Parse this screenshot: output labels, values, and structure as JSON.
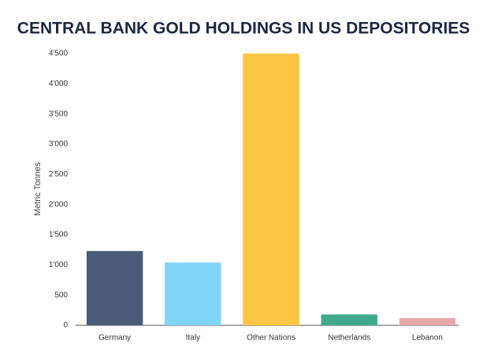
{
  "chart_data": {
    "type": "bar",
    "title": "CENTRAL BANK GOLD HOLDINGS IN US DEPOSITORIES",
    "y_label": "Metric Tonnes",
    "categories": [
      "Germany",
      "Italy",
      "Other Nations",
      "Netherlands",
      "Lebanon"
    ],
    "values": [
      1230,
      1040,
      4500,
      180,
      120
    ],
    "colors": [
      "#4a5a78",
      "#80d4f8",
      "#fdc542",
      "#3ea98b",
      "#e9a9ab"
    ],
    "ylim": [
      0,
      4500
    ],
    "yticks": [
      0,
      500,
      {
        "value": 1000,
        "label": "1'000"
      },
      {
        "value": 1500,
        "label": "1'500"
      },
      {
        "value": 2000,
        "label": "2'000"
      },
      {
        "value": 2500,
        "label": "2'500"
      },
      {
        "value": 3000,
        "label": "3'000"
      },
      {
        "value": 3500,
        "label": "3'500"
      },
      {
        "value": 4000,
        "label": "4'000"
      },
      {
        "value": 4500,
        "label": "4'500"
      }
    ],
    "grid": false
  }
}
